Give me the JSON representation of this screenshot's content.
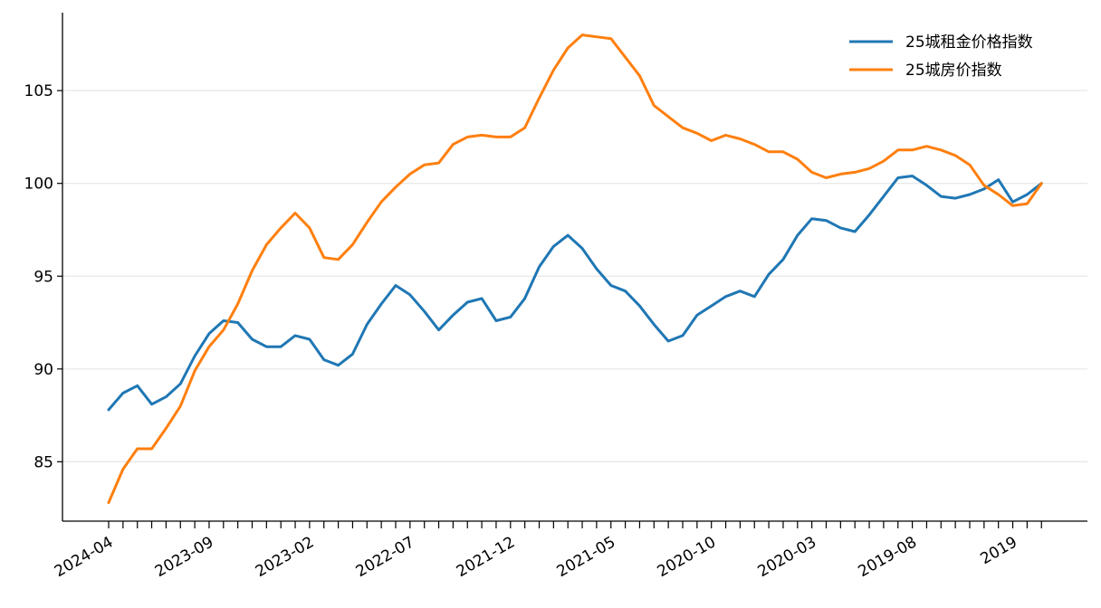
{
  "chart_data": {
    "type": "line",
    "x_tick_labels": [
      "2024-04",
      "2023-09",
      "2023-02",
      "2022-07",
      "2021-12",
      "2021-05",
      "2020-10",
      "2020-03",
      "2019-08",
      "2019"
    ],
    "y_ticks": [
      85,
      90,
      95,
      100,
      105
    ],
    "ylim": [
      81.8,
      109.2
    ],
    "grid": "horizontal",
    "legend_position": "top-right",
    "series": [
      {
        "name": "25城租金价格指数",
        "color": "#1f77b4",
        "values": [
          87.8,
          88.7,
          89.1,
          88.1,
          88.5,
          89.2,
          90.7,
          91.9,
          92.6,
          92.5,
          91.6,
          91.2,
          91.2,
          91.8,
          91.6,
          90.5,
          90.2,
          90.8,
          92.4,
          93.5,
          94.5,
          94.0,
          93.1,
          92.1,
          92.9,
          93.6,
          93.8,
          92.6,
          92.8,
          93.8,
          95.5,
          96.6,
          97.2,
          96.5,
          95.4,
          94.5,
          94.2,
          93.4,
          92.4,
          91.5,
          91.8,
          92.9,
          93.4,
          93.9,
          94.2,
          93.9,
          95.1,
          95.9,
          97.2,
          98.1,
          98.0,
          97.6,
          97.4,
          98.3,
          99.3,
          100.3,
          100.4,
          99.9,
          99.3,
          99.2,
          99.4,
          99.7,
          100.2,
          99.0,
          99.4,
          100.0
        ]
      },
      {
        "name": "25城房价指数",
        "color": "#ff7f0e",
        "values": [
          82.8,
          84.6,
          85.7,
          85.7,
          86.8,
          88.0,
          89.9,
          91.2,
          92.1,
          93.5,
          95.3,
          96.7,
          97.6,
          98.4,
          97.6,
          96.0,
          95.9,
          96.7,
          97.9,
          99.0,
          99.8,
          100.5,
          101.0,
          101.1,
          102.1,
          102.5,
          102.6,
          102.5,
          102.5,
          103.0,
          104.6,
          106.1,
          107.3,
          108.0,
          107.9,
          107.8,
          106.8,
          105.8,
          104.2,
          103.6,
          103.0,
          102.7,
          102.3,
          102.6,
          102.4,
          102.1,
          101.7,
          101.7,
          101.3,
          100.6,
          100.3,
          100.5,
          100.6,
          100.8,
          101.2,
          101.8,
          101.8,
          102.0,
          101.8,
          101.5,
          101.0,
          99.9,
          99.4,
          98.8,
          98.9,
          100.0
        ]
      }
    ]
  }
}
